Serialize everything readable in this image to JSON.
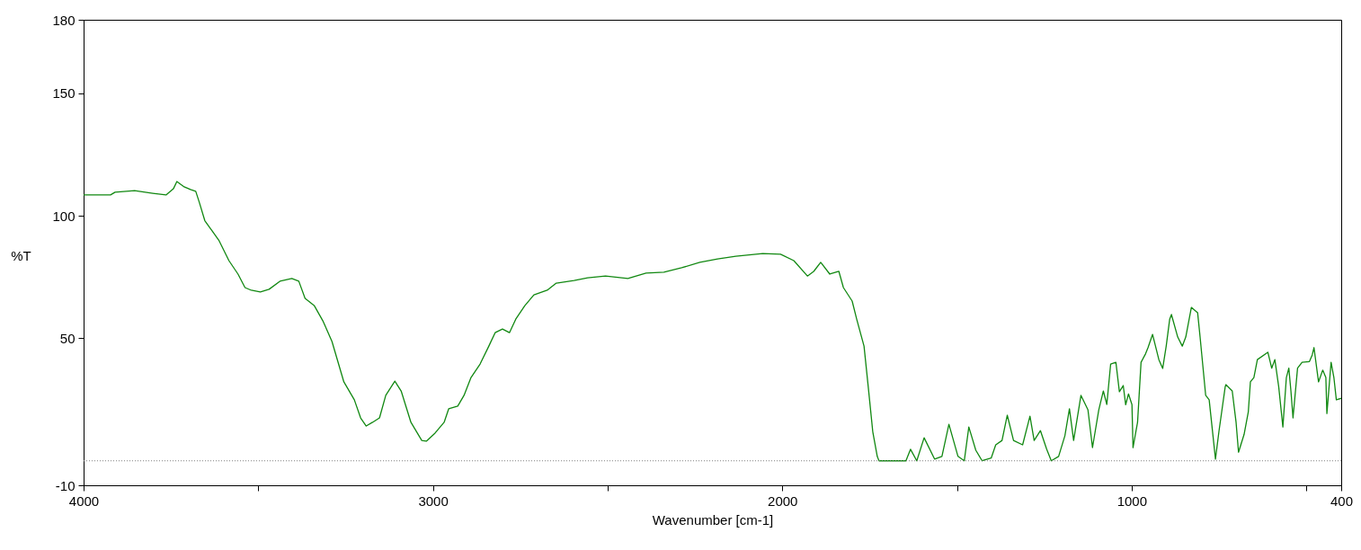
{
  "chart_data": {
    "type": "line",
    "xlabel": "Wavenumber [cm-1]",
    "ylabel": "%T",
    "xlim": [
      4000,
      400
    ],
    "xticks": [
      4000,
      {
        "value": 3500,
        "label": null
      },
      3000,
      {
        "value": 2500,
        "label": null
      },
      2000,
      {
        "value": 1500,
        "label": null
      },
      1000,
      {
        "value": 500,
        "label": null
      },
      400
    ],
    "ylim": [
      -10,
      180
    ],
    "yticks": [
      -10,
      50,
      100,
      150,
      180
    ],
    "grid": false,
    "line_style": "solid",
    "marker": "none",
    "ref_lines": [
      {
        "axis": "y",
        "value": 0,
        "line_style": "dotted",
        "color": "#808080"
      }
    ],
    "series": [
      {
        "color": "#118811",
        "x": [
          4000,
          3923,
          3910,
          3854,
          3802,
          3764,
          3743,
          3733,
          3712,
          3694,
          3679,
          3669,
          3653,
          3633,
          3612,
          3584,
          3558,
          3538,
          3520,
          3494,
          3469,
          3438,
          3404,
          3384,
          3366,
          3340,
          3315,
          3289,
          3255,
          3225,
          3207,
          3191,
          3173,
          3153,
          3135,
          3109,
          3091,
          3063,
          3032,
          3019,
          2994,
          2968,
          2955,
          2929,
          2911,
          2891,
          2865,
          2840,
          2822,
          2801,
          2781,
          2763,
          2737,
          2711,
          2673,
          2647,
          2596,
          2557,
          2506,
          2442,
          2390,
          2339,
          2288,
          2236,
          2185,
          2133,
          2056,
          2005,
          1967,
          1928,
          1910,
          1890,
          1864,
          1838,
          1825,
          1800,
          1787,
          1766,
          1754,
          1741,
          1728,
          1723,
          1646,
          1633,
          1615,
          1594,
          1564,
          1543,
          1523,
          1497,
          1479,
          1466,
          1446,
          1428,
          1402,
          1389,
          1371,
          1356,
          1338,
          1312,
          1291,
          1279,
          1261,
          1243,
          1230,
          1209,
          1191,
          1178,
          1166,
          1145,
          1125,
          1112,
          1094,
          1081,
          1071,
          1060,
          1045,
          1035,
          1024,
          1017,
          1009,
          999,
          996,
          983,
          973,
          960,
          953,
          940,
          922,
          911,
          901,
          891,
          886,
          868,
          855,
          845,
          829,
          811,
          804,
          788,
          778,
          760,
          750,
          732,
          730,
          712,
          701,
          694,
          678,
          666,
          660,
          650,
          640,
          610,
          599,
          590,
          579,
          567,
          557,
          550,
          544,
          538,
          525,
          512,
          491,
          483,
          478,
          465,
          453,
          444,
          441,
          429,
          421,
          414,
          400
        ],
        "values": [
          108.5,
          108.5,
          109.6,
          110.3,
          109.2,
          108.5,
          111,
          114,
          111.8,
          110.7,
          110,
          105.6,
          98,
          94,
          89.8,
          81.7,
          76.2,
          70.7,
          69.6,
          68.9,
          70,
          73.3,
          74.4,
          73.3,
          66.3,
          63.4,
          57.1,
          48.7,
          32.2,
          24.9,
          17.5,
          14.2,
          15.7,
          17.5,
          26.7,
          32.5,
          28.5,
          15.7,
          8.3,
          8,
          11.3,
          15.7,
          21.2,
          22.3,
          26.7,
          34,
          39.5,
          46.8,
          52.3,
          53.8,
          52.3,
          57.8,
          63.3,
          67.7,
          69.6,
          72.5,
          73.6,
          74.7,
          75.4,
          74.4,
          76.6,
          77,
          78.8,
          81,
          82.4,
          83.5,
          84.6,
          84.3,
          81.7,
          75.4,
          77.3,
          81,
          76.2,
          77.3,
          70.7,
          65.2,
          57.8,
          46.8,
          30.3,
          11.9,
          1.7,
          0,
          0,
          4.7,
          0,
          9.4,
          0.7,
          1.8,
          14.9,
          1.8,
          0,
          13.8,
          4.3,
          0,
          1.1,
          6.5,
          8.3,
          18.6,
          8.3,
          6.5,
          18.2,
          8.3,
          12.3,
          4.7,
          0,
          1.8,
          10.2,
          21.2,
          8.3,
          26.7,
          20.8,
          5.4,
          20.8,
          28.5,
          23,
          39.5,
          40.2,
          28.2,
          30.7,
          22.9,
          27.3,
          22.9,
          5.4,
          15.7,
          40.2,
          43.7,
          46.2,
          51.6,
          41.3,
          37.7,
          46.8,
          57.8,
          59.7,
          50.5,
          46.8,
          50.5,
          62.6,
          60.4,
          50.5,
          26.7,
          24.9,
          0.7,
          12,
          30.3,
          31.1,
          28.5,
          15.7,
          3.5,
          10.8,
          19.9,
          32.2,
          34,
          41.3,
          44.3,
          37.8,
          41.3,
          30.3,
          13.8,
          34,
          37.8,
          28.5,
          17.5,
          37.8,
          40.2,
          40.5,
          43.2,
          46.2,
          32.2,
          37,
          34,
          19.3,
          40.2,
          34,
          24.9,
          25.5
        ]
      }
    ]
  }
}
